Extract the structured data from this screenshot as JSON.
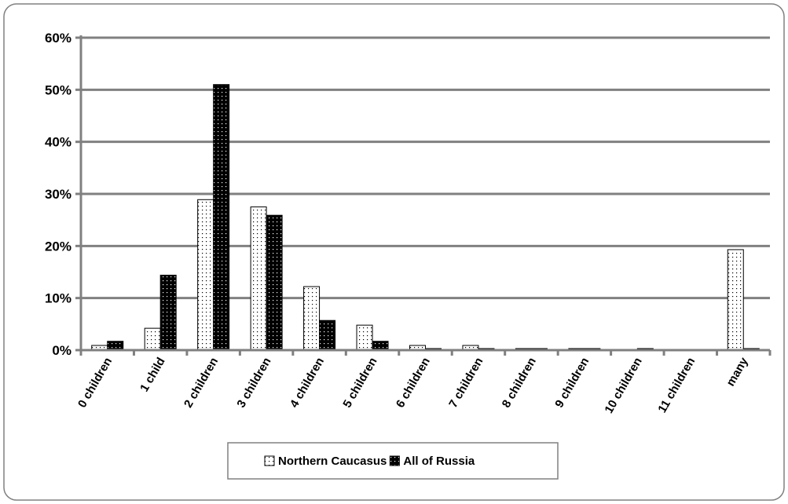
{
  "chart_data": {
    "type": "bar",
    "title": "",
    "xlabel": "",
    "ylabel": "",
    "ylim": [
      0,
      60
    ],
    "y_ticks": [
      0,
      10,
      20,
      30,
      40,
      50,
      60
    ],
    "y_tick_suffix": "%",
    "grid": true,
    "legend_position": "bottom",
    "categories": [
      "0 children",
      "1 child",
      "2 children",
      "3 children",
      "4 children",
      "5 children",
      "6 children",
      "7 children",
      "8 children",
      "9 children",
      "10 children",
      "11 children",
      "many"
    ],
    "series": [
      {
        "name": "Northern Caucasus",
        "fill": "#ffffff",
        "dot": "#000000",
        "values": [
          0.9,
          4.2,
          28.9,
          27.5,
          12.2,
          4.8,
          0.9,
          0.9,
          0.3,
          0.3,
          0.0,
          0.0,
          19.3
        ]
      },
      {
        "name": "All of Russia",
        "fill": "#000000",
        "dot": "#ffffff",
        "values": [
          1.7,
          14.4,
          51.0,
          25.9,
          5.7,
          1.7,
          0.3,
          0.3,
          0.3,
          0.3,
          0.3,
          0.0,
          0.3
        ]
      }
    ],
    "colors": {
      "grid": "#808080",
      "frame": "#808080",
      "axis": "#808080"
    }
  }
}
